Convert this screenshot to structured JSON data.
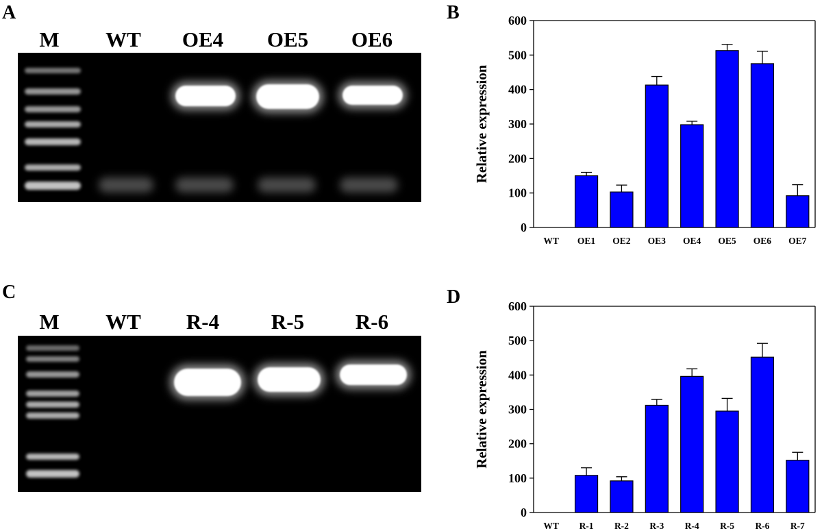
{
  "panels": {
    "A": {
      "letter": "A",
      "lanes": [
        "M",
        "WT",
        "OE4",
        "OE5",
        "OE6"
      ]
    },
    "B": {
      "letter": "B"
    },
    "C": {
      "letter": "C",
      "lanes": [
        "M",
        "WT",
        "R-4",
        "R-5",
        "R-6"
      ]
    },
    "D": {
      "letter": "D"
    }
  },
  "chart_data": [
    {
      "type": "bar",
      "title": "",
      "xlabel": "",
      "ylabel": "Relative expression",
      "ylim": [
        0,
        600
      ],
      "yticks": [
        0,
        100,
        200,
        300,
        400,
        500,
        600
      ],
      "grid": false,
      "categories": [
        "WT",
        "OE1",
        "OE2",
        "OE3",
        "OE4",
        "OE5",
        "OE6",
        "OE7"
      ],
      "values": [
        0,
        150,
        103,
        413,
        298,
        513,
        475,
        92
      ],
      "errors": [
        0,
        10,
        20,
        25,
        10,
        18,
        36,
        32
      ],
      "color": "#0000ff"
    },
    {
      "type": "bar",
      "title": "",
      "xlabel": "",
      "ylabel": "Relative expression",
      "ylim": [
        0,
        600
      ],
      "yticks": [
        0,
        100,
        200,
        300,
        400,
        500,
        600
      ],
      "grid": false,
      "categories": [
        "WT",
        "R-1",
        "R-2",
        "R-3",
        "R-4",
        "R-5",
        "R-6",
        "R-7"
      ],
      "values": [
        0,
        108,
        92,
        312,
        396,
        295,
        452,
        152
      ],
      "errors": [
        0,
        22,
        12,
        17,
        22,
        37,
        40,
        23
      ],
      "color": "#0000ff"
    }
  ]
}
